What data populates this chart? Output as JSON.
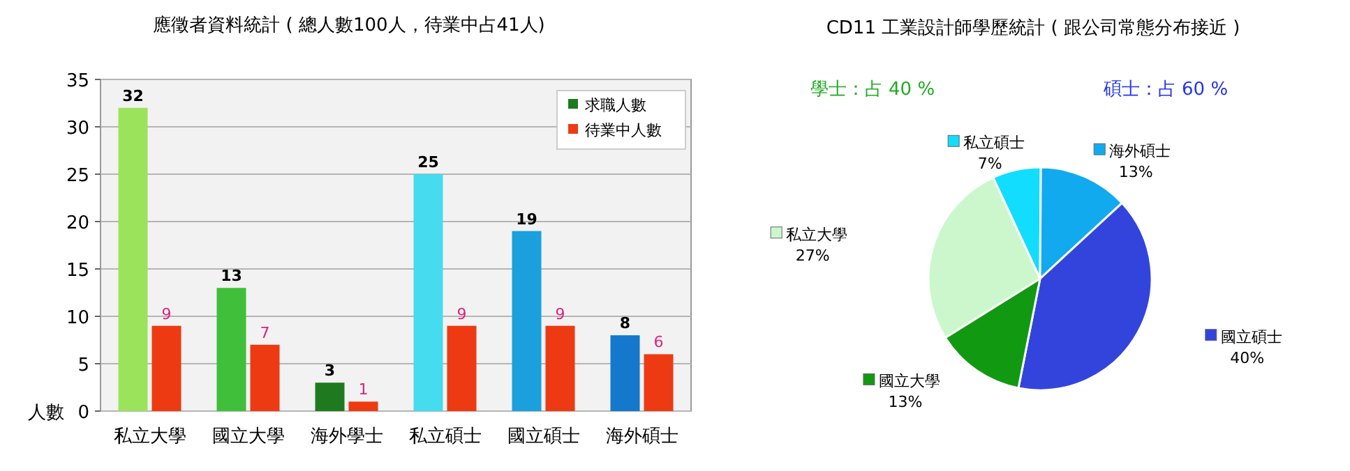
{
  "chart_data": [
    {
      "type": "bar",
      "title": "應徵者資料統計 ( 總人數100人，待業中占41人)",
      "ylabel": "人數",
      "categories": [
        "私立大學",
        "國立大學",
        "海外學士",
        "私立碩士",
        "國立碩士",
        "海外碩士"
      ],
      "series": [
        {
          "name": "求職人數",
          "color": "#1f7a1f",
          "colors": [
            "#9be35a",
            "#3fbf3a",
            "#1f7a1f",
            "#45dcef",
            "#1aa0dd",
            "#1478cc"
          ],
          "values": [
            32,
            13,
            3,
            25,
            19,
            8
          ]
        },
        {
          "name": "待業中人數",
          "color": "#ee3a12",
          "values": [
            9,
            7,
            1,
            9,
            9,
            6
          ]
        }
      ],
      "ylim": [
        0,
        35
      ],
      "yticks": [
        0,
        5,
        10,
        15,
        20,
        25,
        30,
        35
      ],
      "grid": "y",
      "legend": "top right",
      "data_labels": true
    },
    {
      "type": "pie",
      "title": "CD11 工業設計師學歷統計 ( 跟公司常態分布接近 )",
      "categories": [
        "私立大學",
        "私立碩士",
        "海外碩士",
        "國立碩士",
        "國立大學"
      ],
      "values": [
        27,
        7,
        13,
        40,
        13
      ],
      "value_labels": [
        "27%",
        "7%",
        "13%",
        "40%",
        "13%"
      ],
      "colors": [
        "#ccf7cc",
        "#12ddff",
        "#12aaee",
        "#3344dd",
        "#129912"
      ],
      "legend": "top",
      "annotations": [
        "學士：占 40 %",
        "碩士：占 60 %"
      ]
    }
  ]
}
